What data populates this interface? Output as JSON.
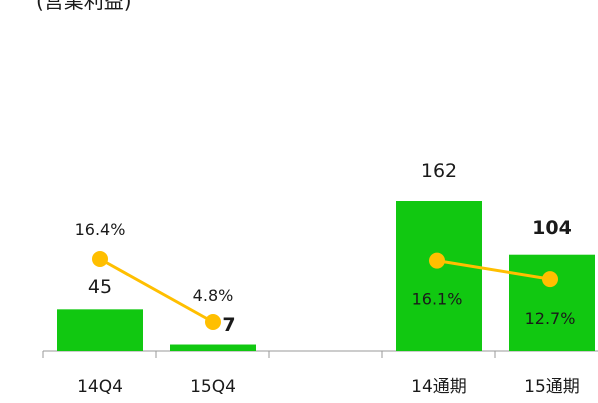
{
  "title": "(営業利益)",
  "chart_data": {
    "type": "bar",
    "categories": [
      "14Q4",
      "15Q4",
      "14通期",
      "15通期"
    ],
    "values": [
      45,
      7,
      162,
      104
    ],
    "value_labels": [
      "45",
      "7",
      "162",
      "104"
    ],
    "value_bold": [
      false,
      true,
      false,
      true
    ],
    "bar_color": "#11c811",
    "line_color": "#ffbf00",
    "line_series": [
      {
        "categories": [
          "14Q4",
          "15Q4"
        ],
        "values": [
          16.4,
          4.8
        ],
        "labels": [
          "16.4%",
          "4.8%"
        ]
      },
      {
        "categories": [
          "14通期",
          "15通期"
        ],
        "values": [
          16.1,
          12.7
        ],
        "labels": [
          "16.1%",
          "12.7%"
        ]
      }
    ],
    "ylim": [
      0,
      200
    ],
    "grid": false,
    "legend": "none",
    "xlabel": "",
    "ylabel": ""
  }
}
